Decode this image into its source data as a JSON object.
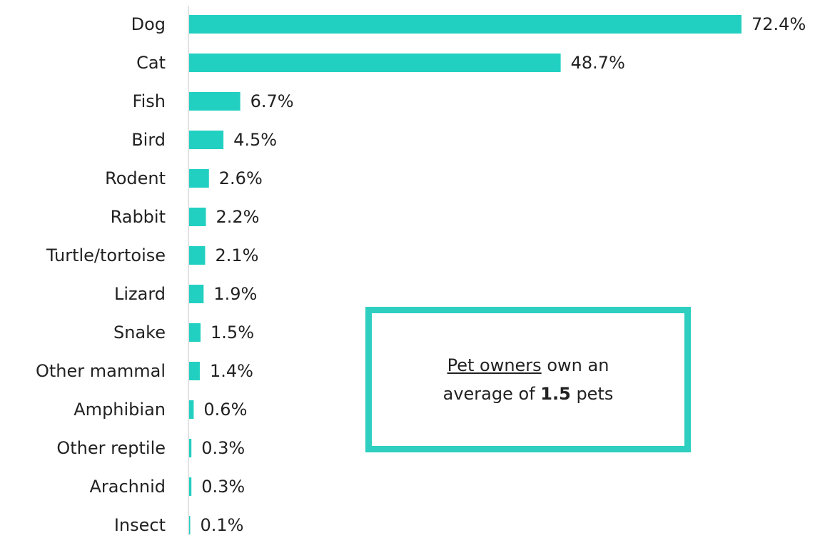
{
  "chart_data": {
    "type": "hbar",
    "categories": [
      "Dog",
      "Cat",
      "Fish",
      "Bird",
      "Rodent",
      "Rabbit",
      "Turtle/tortoise",
      "Lizard",
      "Snake",
      "Other mammal",
      "Amphibian",
      "Other reptile",
      "Arachnid",
      "Insect"
    ],
    "values": [
      72.4,
      48.7,
      6.7,
      4.5,
      2.6,
      2.2,
      2.1,
      1.9,
      1.5,
      1.4,
      0.6,
      0.3,
      0.3,
      0.1
    ],
    "value_labels": [
      "72.4%",
      "48.7%",
      "6.7%",
      "4.5%",
      "2.6%",
      "2.2%",
      "2.1%",
      "1.9%",
      "1.5%",
      "1.4%",
      "0.6%",
      "0.3%",
      "0.3%",
      "0.1%"
    ],
    "color": "#22d0c1",
    "annotation": {
      "underlined": "Pet owners",
      "text1": "own an",
      "text2": "average of",
      "bold": "1.5",
      "text3": "pets",
      "border_color": "#2ecfc0"
    }
  }
}
